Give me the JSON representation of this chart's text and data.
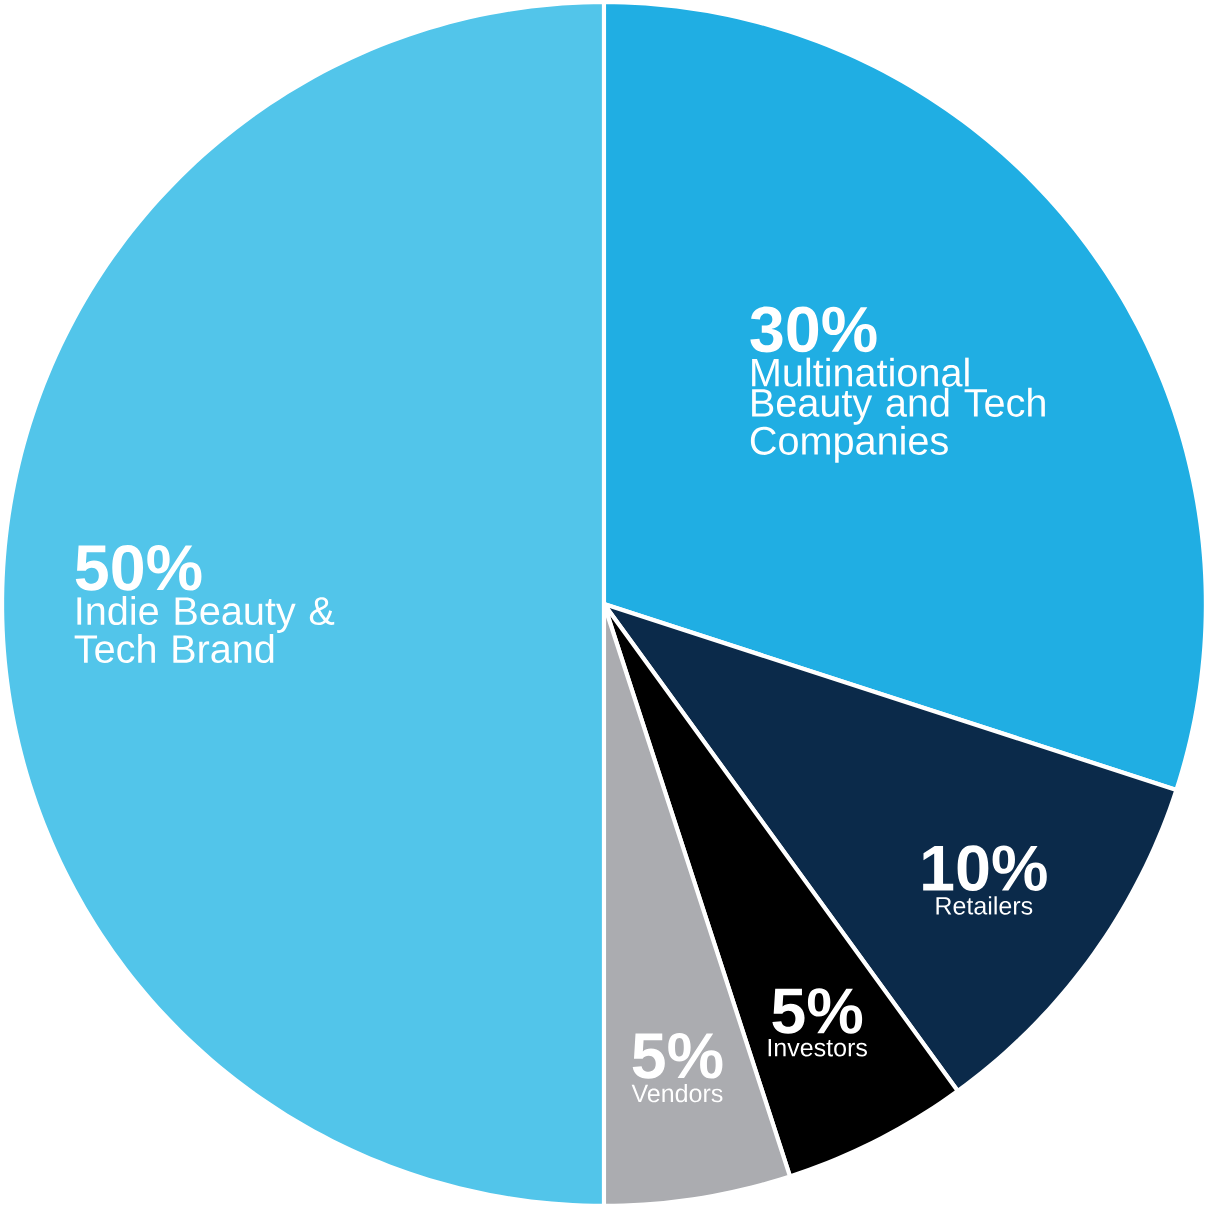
{
  "chart_data": {
    "type": "pie",
    "categories": [
      "Multinational Beauty and Tech Companies",
      "Retailers",
      "Investors",
      "Vendors",
      "Indie Beauty & Tech Brand"
    ],
    "values": [
      30,
      10,
      5,
      5,
      50
    ],
    "value_labels": [
      "30%",
      "10%",
      "5%",
      "5%",
      "50%"
    ],
    "colors": [
      "#20aee3",
      "#0b2a4a",
      "#000000",
      "#abacb0",
      "#52c5ea"
    ]
  }
}
